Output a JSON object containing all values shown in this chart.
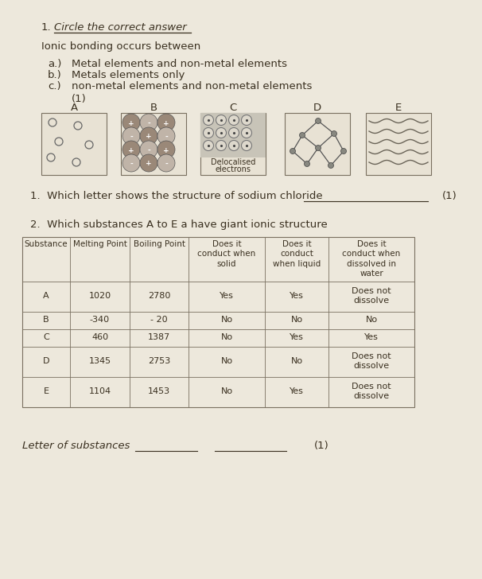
{
  "bg_color": "#ede8dc",
  "title_num": "1.",
  "title_text": "Circle the correct answer",
  "intro": "Ionic bonding occurs between",
  "options": [
    [
      "a.)",
      "Metal elements and non-metal elements"
    ],
    [
      "b.)",
      "Metals elements only"
    ],
    [
      "c.)",
      "non-metal elements and non-metal elements"
    ]
  ],
  "mark1": "(1)",
  "diagram_labels": [
    "A",
    "B",
    "C",
    "D",
    "E"
  ],
  "q1_text": "1.  Which letter shows the structure of sodium chloride",
  "q1_mark": "(1)",
  "q2_text": "2.  Which substances A to E a have giant ionic structure",
  "table_headers": [
    "Substance",
    "Melting Point",
    "Boiling Point",
    "Does it\nconduct when\nsolid",
    "Does it\nconduct\nwhen liquid",
    "Does it\nconduct when\ndissolved in\nwater"
  ],
  "table_data": [
    [
      "A",
      "1020",
      "2780",
      "Yes",
      "Yes",
      "Does not\ndissolve"
    ],
    [
      "B",
      "-340",
      "- 20",
      "No",
      "No",
      "No"
    ],
    [
      "C",
      "460",
      "1387",
      "No",
      "Yes",
      "Yes"
    ],
    [
      "D",
      "1345",
      "2753",
      "No",
      "No",
      "Does not\ndissolve"
    ],
    [
      "E",
      "1104",
      "1453",
      "No",
      "Yes",
      "Does not\ndissolve"
    ]
  ],
  "footer_label": "Letter of substances",
  "footer_mark": "(1)",
  "text_color": "#3a3020",
  "table_line_color": "#7a7060",
  "underline_color": "#3a3020",
  "box_face": "#e8e2d4",
  "box_C_face": "#c8c4b8",
  "ionic_colors": [
    "#9a8878",
    "#c0b4a8"
  ],
  "diamond_node_color": "#888880",
  "wavy_color": "#6a6458"
}
